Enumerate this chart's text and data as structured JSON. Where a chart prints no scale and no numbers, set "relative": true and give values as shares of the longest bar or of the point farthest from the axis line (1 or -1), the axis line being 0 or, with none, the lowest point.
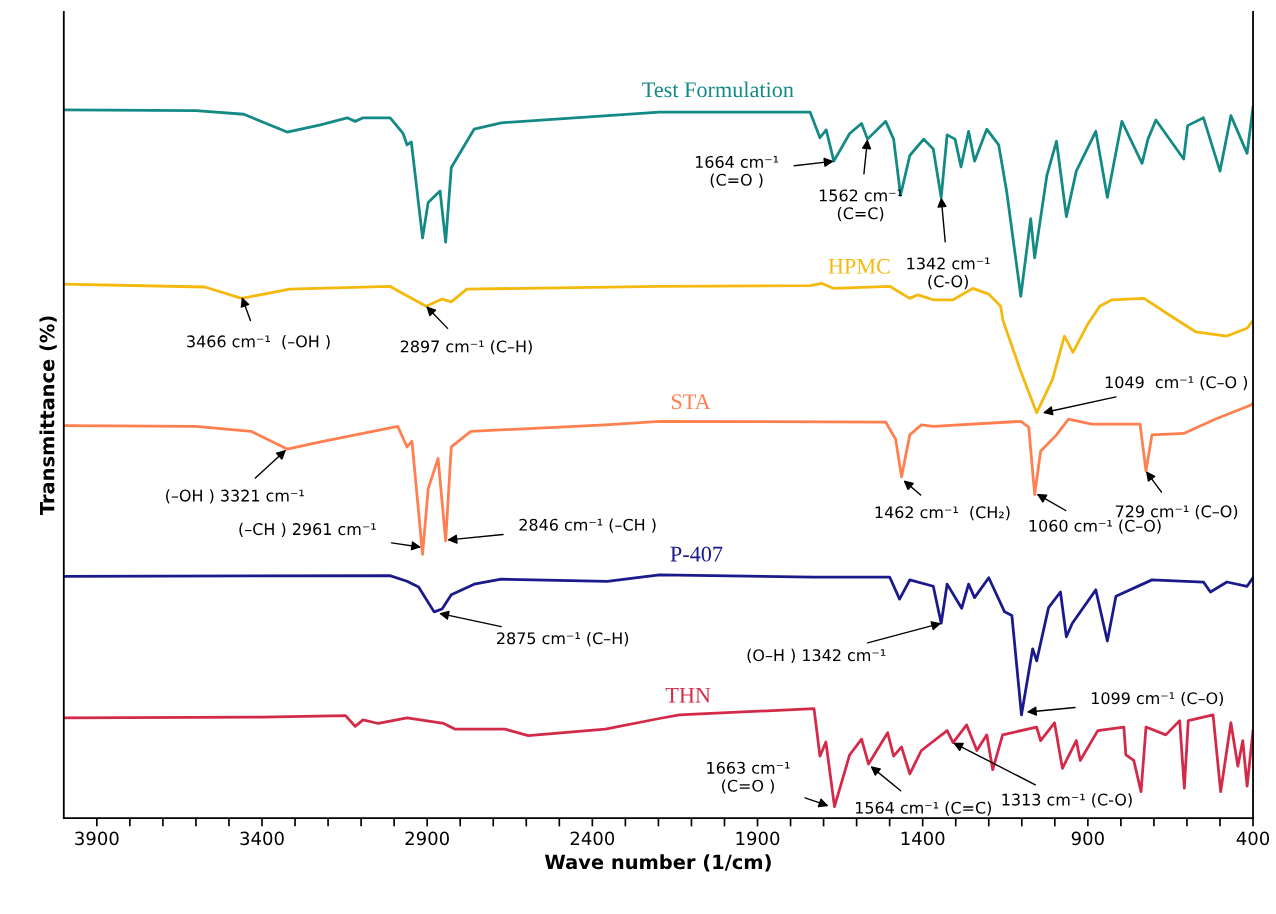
{
  "chart_data": {
    "type": "line",
    "relative": true,
    "xlabel": "Wave number (1/cm)",
    "ylabel": "Transmittance (%)",
    "xlim": [
      4000,
      400
    ],
    "xticks": [
      3900,
      {
        "value": 3800,
        "label": null
      },
      {
        "value": 3700,
        "label": null
      },
      {
        "value": 3600,
        "label": null
      },
      {
        "value": 3500,
        "label": null
      },
      3400,
      {
        "value": 3300,
        "label": null
      },
      {
        "value": 3200,
        "label": null
      },
      {
        "value": 3100,
        "label": null
      },
      {
        "value": 3000,
        "label": null
      },
      2900,
      {
        "value": 2800,
        "label": null
      },
      {
        "value": 2700,
        "label": null
      },
      {
        "value": 2600,
        "label": null
      },
      {
        "value": 2500,
        "label": null
      },
      2400,
      {
        "value": 2300,
        "label": null
      },
      {
        "value": 2200,
        "label": null
      },
      {
        "value": 2100,
        "label": null
      },
      {
        "value": 2000,
        "label": null
      },
      1900,
      {
        "value": 1800,
        "label": null
      },
      {
        "value": 1700,
        "label": null
      },
      {
        "value": 1600,
        "label": null
      },
      {
        "value": 1500,
        "label": null
      },
      1400,
      {
        "value": 1300,
        "label": null
      },
      {
        "value": 1200,
        "label": null
      },
      {
        "value": 1100,
        "label": null
      },
      {
        "value": 1000,
        "label": null
      },
      900,
      {
        "value": 800,
        "label": null
      },
      {
        "value": 700,
        "label": null
      },
      {
        "value": 600,
        "label": null
      },
      {
        "value": 500,
        "label": null
      },
      400
    ],
    "tick_labels": "x",
    "grid": false,
    "legend": false,
    "series": [
      {
        "name": "Test Formulation",
        "color": "#138a86",
        "x": [
          4000,
          3600,
          3455,
          3324,
          3223,
          3142,
          3118,
          3094,
          3012,
          2973,
          2961,
          2948,
          2914,
          2897,
          2861,
          2844,
          2827,
          2758,
          2676,
          2197,
          1741,
          1711,
          1692,
          1669,
          1621,
          1585,
          1567,
          1512,
          1488,
          1467,
          1439,
          1397,
          1368,
          1344,
          1326,
          1302,
          1284,
          1261,
          1243,
          1206,
          1170,
          1146,
          1103,
          1073,
          1061,
          1024,
          995,
          965,
          935,
          876,
          841,
          797,
          736,
          718,
          694,
          610,
          598,
          550,
          500,
          467,
          418,
          400
        ],
        "values": [
          0.996,
          0.995,
          0.99,
          0.965,
          0.975,
          0.985,
          0.98,
          0.985,
          0.985,
          0.963,
          0.947,
          0.951,
          0.816,
          0.866,
          0.882,
          0.81,
          0.915,
          0.969,
          0.978,
          0.993,
          0.993,
          0.957,
          0.968,
          0.924,
          0.963,
          0.977,
          0.955,
          0.98,
          0.955,
          0.876,
          0.932,
          0.955,
          0.941,
          0.873,
          0.961,
          0.955,
          0.916,
          0.966,
          0.924,
          0.969,
          0.947,
          0.882,
          0.734,
          0.843,
          0.788,
          0.904,
          0.952,
          0.846,
          0.91,
          0.966,
          0.873,
          0.98,
          0.921,
          0.955,
          0.982,
          0.927,
          0.974,
          0.985,
          0.91,
          0.988,
          0.935,
          1.0
        ]
      },
      {
        "name": "HPMC",
        "color": "#f4b90c",
        "x": [
          4000,
          3573,
          3462,
          3316,
          3013,
          2967,
          2903,
          2855,
          2827,
          2780,
          2197,
          1741,
          1705,
          1669,
          1500,
          1439,
          1415,
          1368,
          1308,
          1248,
          1200,
          1164,
          1157,
          1103,
          1055,
          1007,
          971,
          945,
          900,
          864,
          827,
          730,
          658,
          574,
          479,
          418,
          400
        ],
        "values": [
          0.751,
          0.747,
          0.731,
          0.744,
          0.748,
          0.736,
          0.72,
          0.73,
          0.726,
          0.744,
          0.748,
          0.749,
          0.752,
          0.745,
          0.748,
          0.731,
          0.736,
          0.729,
          0.729,
          0.745,
          0.737,
          0.72,
          0.7,
          0.628,
          0.57,
          0.617,
          0.678,
          0.655,
          0.695,
          0.72,
          0.729,
          0.731,
          0.709,
          0.684,
          0.678,
          0.689,
          0.7
        ]
      },
      {
        "name": "STA",
        "color": "#ff7f50",
        "x": [
          4000,
          3600,
          3433,
          3324,
          3223,
          2989,
          2961,
          2946,
          2914,
          2897,
          2867,
          2844,
          2827,
          2768,
          2361,
          2197,
          1512,
          1482,
          1464,
          1439,
          1404,
          1368,
          1103,
          1079,
          1061,
          1043,
          995,
          959,
          888,
          742,
          724,
          706,
          610,
          515,
          406,
          400
        ],
        "values": [
          0.552,
          0.551,
          0.544,
          0.519,
          0.529,
          0.551,
          0.522,
          0.53,
          0.371,
          0.463,
          0.506,
          0.39,
          0.522,
          0.544,
          0.553,
          0.558,
          0.557,
          0.533,
          0.48,
          0.539,
          0.553,
          0.551,
          0.558,
          0.55,
          0.455,
          0.516,
          0.539,
          0.561,
          0.554,
          0.554,
          0.488,
          0.539,
          0.541,
          0.561,
          0.581,
          0.584
        ]
      },
      {
        "name": "P-407",
        "color": "#1a1a8c",
        "x": [
          4000,
          3013,
          2961,
          2926,
          2879,
          2855,
          2827,
          2758,
          2676,
          2355,
          2197,
          1729,
          1500,
          1470,
          1439,
          1368,
          1344,
          1326,
          1282,
          1261,
          1243,
          1200,
          1152,
          1130,
          1101,
          1067,
          1055,
          1019,
          983,
          965,
          947,
          876,
          841,
          815,
          706,
          550,
          529,
          479,
          418,
          400
        ],
        "values": [
          0.34,
          0.341,
          0.333,
          0.325,
          0.29,
          0.294,
          0.314,
          0.329,
          0.336,
          0.333,
          0.342,
          0.339,
          0.339,
          0.308,
          0.335,
          0.326,
          0.274,
          0.329,
          0.295,
          0.329,
          0.31,
          0.338,
          0.29,
          0.285,
          0.145,
          0.238,
          0.221,
          0.296,
          0.318,
          0.255,
          0.274,
          0.321,
          0.249,
          0.312,
          0.335,
          0.332,
          0.318,
          0.332,
          0.326,
          0.338
        ]
      },
      {
        "name": "THN",
        "color": "#d42a4a",
        "x": [
          4000,
          3400,
          3147,
          3118,
          3094,
          3048,
          2961,
          2850,
          2815,
          2664,
          2594,
          2361,
          2197,
          2137,
          1729,
          1711,
          1693,
          1667,
          1621,
          1585,
          1564,
          1506,
          1488,
          1464,
          1439,
          1404,
          1326,
          1308,
          1267,
          1236,
          1206,
          1188,
          1158,
          1055,
          1043,
          1001,
          977,
          935,
          923,
          870,
          791,
          785,
          761,
          739,
          724,
          664,
          622,
          608,
          596,
          521,
          498,
          467,
          446,
          431,
          418,
          400
        ],
        "values": [
          0.141,
          0.142,
          0.144,
          0.129,
          0.138,
          0.133,
          0.141,
          0.133,
          0.125,
          0.125,
          0.116,
          0.125,
          0.14,
          0.145,
          0.154,
          0.087,
          0.107,
          0.016,
          0.089,
          0.111,
          0.076,
          0.12,
          0.087,
          0.1,
          0.062,
          0.095,
          0.123,
          0.106,
          0.131,
          0.095,
          0.117,
          0.068,
          0.117,
          0.128,
          0.109,
          0.134,
          0.07,
          0.109,
          0.081,
          0.123,
          0.128,
          0.089,
          0.081,
          0.037,
          0.128,
          0.117,
          0.137,
          0.042,
          0.137,
          0.145,
          0.037,
          0.134,
          0.073,
          0.109,
          0.045,
          0.123
        ]
      }
    ],
    "annotations": [
      {
        "text": "1664 cm⁻¹\n(C=O )",
        "x": 1669,
        "y": 0.924
      },
      {
        "text": "1562 cm⁻¹\n(C=C)",
        "x": 1567,
        "y": 0.955
      },
      {
        "text": "1342 cm⁻¹\n(C-O)",
        "x": 1344,
        "y": 0.873
      },
      {
        "text": "3466 cm⁻¹  (–OH )",
        "x": 3461,
        "y": 0.733
      },
      {
        "text": "2897 cm⁻¹ (C–H)",
        "x": 2903,
        "y": 0.72
      },
      {
        "text": "1049  cm⁻¹ (C–O )",
        "x": 1036,
        "y": 0.57
      },
      {
        "text": "(–OH ) 3321 cm⁻¹",
        "x": 3327,
        "y": 0.518
      },
      {
        "text": "(–CH ) 2961 cm⁻¹",
        "x": 2918,
        "y": 0.381
      },
      {
        "text": "2846 cm⁻¹ (–CH )",
        "x": 2839,
        "y": 0.391
      },
      {
        "text": "1462 cm⁻¹  (CH₂)",
        "x": 1458,
        "y": 0.475
      },
      {
        "text": "1060 cm⁻¹ (C–O)",
        "x": 1055,
        "y": 0.456
      },
      {
        "text": "729 cm⁻¹ (C–O)",
        "x": 724,
        "y": 0.488
      },
      {
        "text": "2875 cm⁻¹ (C–H)",
        "x": 2864,
        "y": 0.288
      },
      {
        "text": "(O–H ) 1342 cm⁻¹",
        "x": 1344,
        "y": 0.274
      },
      {
        "text": "1099 cm⁻¹ (C–O)",
        "x": 1085,
        "y": 0.149
      },
      {
        "text": "1663 cm⁻¹\n(C=O )",
        "x": 1685,
        "y": 0.017
      },
      {
        "text": "1564 cm⁻¹ (C=C)",
        "x": 1558,
        "y": 0.073
      },
      {
        "text": "1313 cm⁻¹ (C-O)",
        "x": 1308,
        "y": 0.106
      }
    ]
  }
}
